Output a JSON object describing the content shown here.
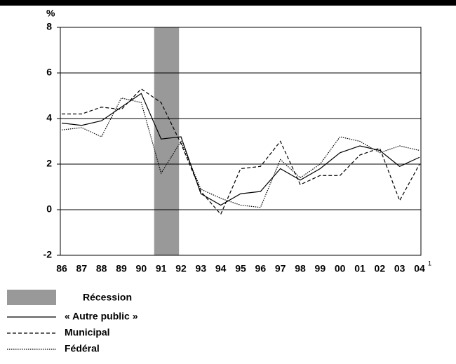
{
  "chart_data": {
    "type": "line",
    "y_label": "%",
    "categories": [
      "86",
      "87",
      "88",
      "89",
      "90",
      "91",
      "92",
      "93",
      "94",
      "95",
      "96",
      "97",
      "98",
      "99",
      "00",
      "01",
      "02",
      "03",
      "04"
    ],
    "footnote_mark": "1",
    "shade": {
      "name": "Récession",
      "color": "#999999",
      "from": "91",
      "to": "92"
    },
    "series": [
      {
        "name": "« Autre public »",
        "color": "#000000",
        "dash": "solid",
        "values": [
          3.8,
          3.7,
          3.9,
          4.5,
          5.1,
          3.1,
          3.2,
          0.7,
          0.2,
          0.7,
          0.8,
          1.8,
          1.3,
          1.8,
          2.5,
          2.8,
          2.6,
          1.9,
          2.3
        ]
      },
      {
        "name": "Municipal",
        "color": "#000000",
        "dash": "dashed",
        "values": [
          4.2,
          4.2,
          4.5,
          4.4,
          5.3,
          4.7,
          2.9,
          0.8,
          -0.2,
          1.8,
          1.9,
          3.0,
          1.1,
          1.5,
          1.5,
          2.4,
          2.7,
          0.4,
          2.0
        ]
      },
      {
        "name": "Fédéral",
        "color": "#000000",
        "dash": "dotted",
        "values": [
          3.5,
          3.6,
          3.2,
          4.9,
          4.7,
          1.6,
          3.0,
          0.9,
          0.5,
          0.2,
          0.1,
          2.2,
          1.4,
          2.0,
          3.2,
          3.0,
          2.5,
          2.8,
          2.6
        ]
      }
    ],
    "ylim": [
      -2,
      8
    ],
    "yticks": [
      -2,
      0,
      2,
      4,
      6,
      8
    ],
    "grid": true
  }
}
